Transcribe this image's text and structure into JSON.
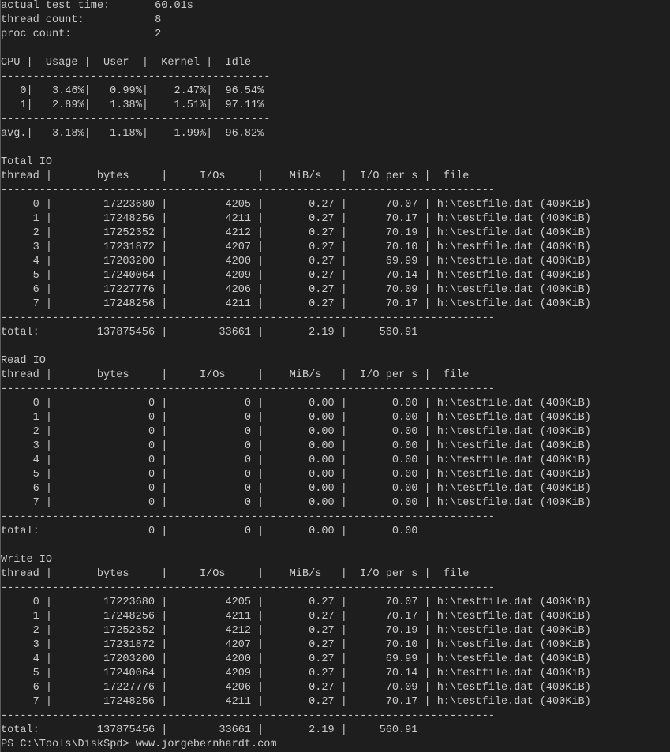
{
  "summary": [
    {
      "label": "actual test time:",
      "value": "60.01s"
    },
    {
      "label": "thread count:",
      "value": "8"
    },
    {
      "label": "proc count:",
      "value": "2"
    }
  ],
  "separator": "|",
  "rule_char": "-",
  "cpu": {
    "headers": [
      "CPU",
      "Usage",
      "User",
      "Kernel",
      "Idle"
    ],
    "rows": [
      [
        "0",
        "3.46%",
        "0.99%",
        "2.47%",
        "96.54%"
      ],
      [
        "1",
        "2.89%",
        "1.38%",
        "1.51%",
        "97.11%"
      ]
    ],
    "avg": [
      "avg.",
      "3.18%",
      "1.18%",
      "1.99%",
      "96.82%"
    ]
  },
  "io_sections": [
    {
      "title": "Total IO",
      "headers": [
        "thread",
        "bytes",
        "I/Os",
        "MiB/s",
        "I/O per s",
        "file"
      ],
      "rows": [
        [
          "0",
          "17223680",
          "4205",
          "0.27",
          "70.07",
          "h:\\testfile.dat (400KiB)"
        ],
        [
          "1",
          "17248256",
          "4211",
          "0.27",
          "70.17",
          "h:\\testfile.dat (400KiB)"
        ],
        [
          "2",
          "17252352",
          "4212",
          "0.27",
          "70.19",
          "h:\\testfile.dat (400KiB)"
        ],
        [
          "3",
          "17231872",
          "4207",
          "0.27",
          "70.10",
          "h:\\testfile.dat (400KiB)"
        ],
        [
          "4",
          "17203200",
          "4200",
          "0.27",
          "69.99",
          "h:\\testfile.dat (400KiB)"
        ],
        [
          "5",
          "17240064",
          "4209",
          "0.27",
          "70.14",
          "h:\\testfile.dat (400KiB)"
        ],
        [
          "6",
          "17227776",
          "4206",
          "0.27",
          "70.09",
          "h:\\testfile.dat (400KiB)"
        ],
        [
          "7",
          "17248256",
          "4211",
          "0.27",
          "70.17",
          "h:\\testfile.dat (400KiB)"
        ]
      ],
      "total": [
        "total:",
        "137875456",
        "33661",
        "2.19",
        "560.91"
      ]
    },
    {
      "title": "Read IO",
      "headers": [
        "thread",
        "bytes",
        "I/Os",
        "MiB/s",
        "I/O per s",
        "file"
      ],
      "rows": [
        [
          "0",
          "0",
          "0",
          "0.00",
          "0.00",
          "h:\\testfile.dat (400KiB)"
        ],
        [
          "1",
          "0",
          "0",
          "0.00",
          "0.00",
          "h:\\testfile.dat (400KiB)"
        ],
        [
          "2",
          "0",
          "0",
          "0.00",
          "0.00",
          "h:\\testfile.dat (400KiB)"
        ],
        [
          "3",
          "0",
          "0",
          "0.00",
          "0.00",
          "h:\\testfile.dat (400KiB)"
        ],
        [
          "4",
          "0",
          "0",
          "0.00",
          "0.00",
          "h:\\testfile.dat (400KiB)"
        ],
        [
          "5",
          "0",
          "0",
          "0.00",
          "0.00",
          "h:\\testfile.dat (400KiB)"
        ],
        [
          "6",
          "0",
          "0",
          "0.00",
          "0.00",
          "h:\\testfile.dat (400KiB)"
        ],
        [
          "7",
          "0",
          "0",
          "0.00",
          "0.00",
          "h:\\testfile.dat (400KiB)"
        ]
      ],
      "total": [
        "total:",
        "0",
        "0",
        "0.00",
        "0.00"
      ]
    },
    {
      "title": "Write IO",
      "headers": [
        "thread",
        "bytes",
        "I/Os",
        "MiB/s",
        "I/O per s",
        "file"
      ],
      "rows": [
        [
          "0",
          "17223680",
          "4205",
          "0.27",
          "70.07",
          "h:\\testfile.dat (400KiB)"
        ],
        [
          "1",
          "17248256",
          "4211",
          "0.27",
          "70.17",
          "h:\\testfile.dat (400KiB)"
        ],
        [
          "2",
          "17252352",
          "4212",
          "0.27",
          "70.19",
          "h:\\testfile.dat (400KiB)"
        ],
        [
          "3",
          "17231872",
          "4207",
          "0.27",
          "70.10",
          "h:\\testfile.dat (400KiB)"
        ],
        [
          "4",
          "17203200",
          "4200",
          "0.27",
          "69.99",
          "h:\\testfile.dat (400KiB)"
        ],
        [
          "5",
          "17240064",
          "4209",
          "0.27",
          "70.14",
          "h:\\testfile.dat (400KiB)"
        ],
        [
          "6",
          "17227776",
          "4206",
          "0.27",
          "70.09",
          "h:\\testfile.dat (400KiB)"
        ],
        [
          "7",
          "17248256",
          "4211",
          "0.27",
          "70.17",
          "h:\\testfile.dat (400KiB)"
        ]
      ],
      "total": [
        "total:",
        "137875456",
        "33661",
        "2.19",
        "560.91"
      ]
    }
  ],
  "prompt": {
    "text": "PS C:\\Tools\\DiskSpd> ",
    "command": "www.jorgebernhardt.com"
  },
  "colors": {
    "background": "#1e1e1e",
    "text": "#cccccc"
  }
}
